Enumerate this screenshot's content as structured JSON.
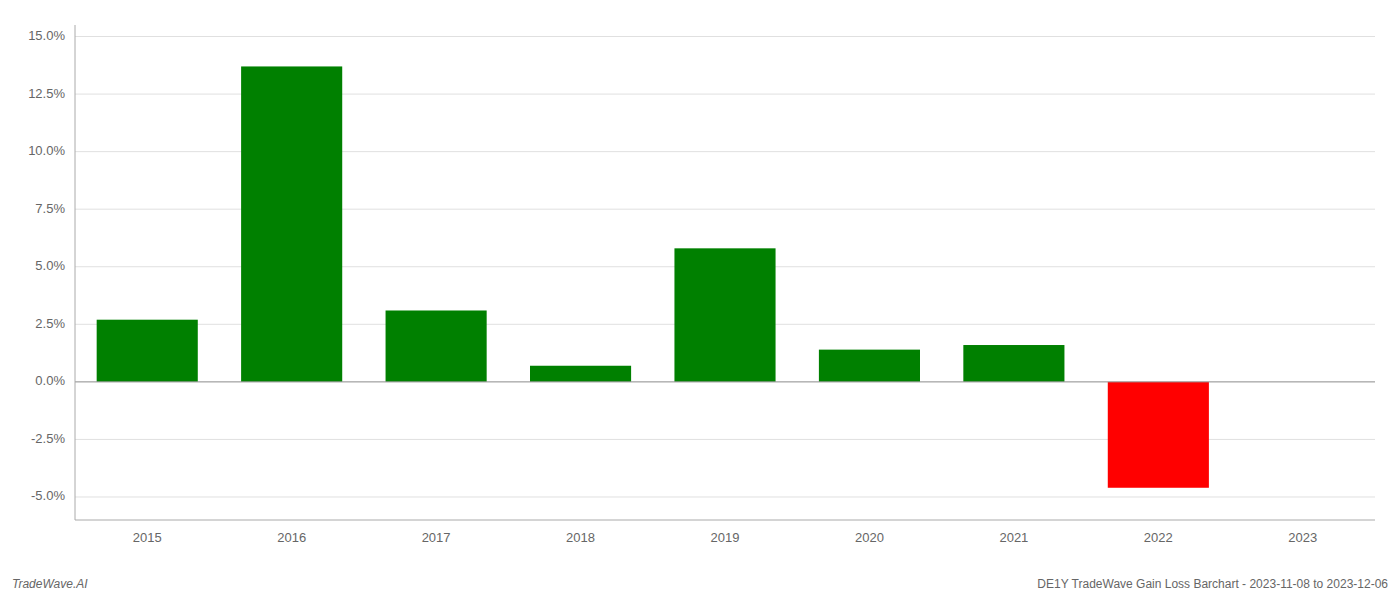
{
  "chart_data": {
    "type": "bar",
    "categories": [
      "2015",
      "2016",
      "2017",
      "2018",
      "2019",
      "2020",
      "2021",
      "2022",
      "2023"
    ],
    "values": [
      0.027,
      0.137,
      0.031,
      0.007,
      0.058,
      0.014,
      0.016,
      -0.046,
      null
    ],
    "colors": [
      "#008000",
      "#008000",
      "#008000",
      "#008000",
      "#008000",
      "#008000",
      "#008000",
      "#ff0000",
      null
    ],
    "ylim": [
      -0.06,
      0.155
    ],
    "yticks": [
      {
        "value": -0.05,
        "label": "-5.0%"
      },
      {
        "value": -0.025,
        "label": "-2.5%"
      },
      {
        "value": 0.0,
        "label": "0.0%"
      },
      {
        "value": 0.025,
        "label": "2.5%"
      },
      {
        "value": 0.05,
        "label": "5.0%"
      },
      {
        "value": 0.075,
        "label": "7.5%"
      },
      {
        "value": 0.1,
        "label": "10.0%"
      },
      {
        "value": 0.125,
        "label": "12.5%"
      },
      {
        "value": 0.15,
        "label": "15.0%"
      }
    ],
    "grid": true,
    "annotations": [
      "TradeWave.AI",
      "DE1Y TradeWave Gain Loss Barchart - 2023-11-08 to 2023-12-06"
    ]
  }
}
